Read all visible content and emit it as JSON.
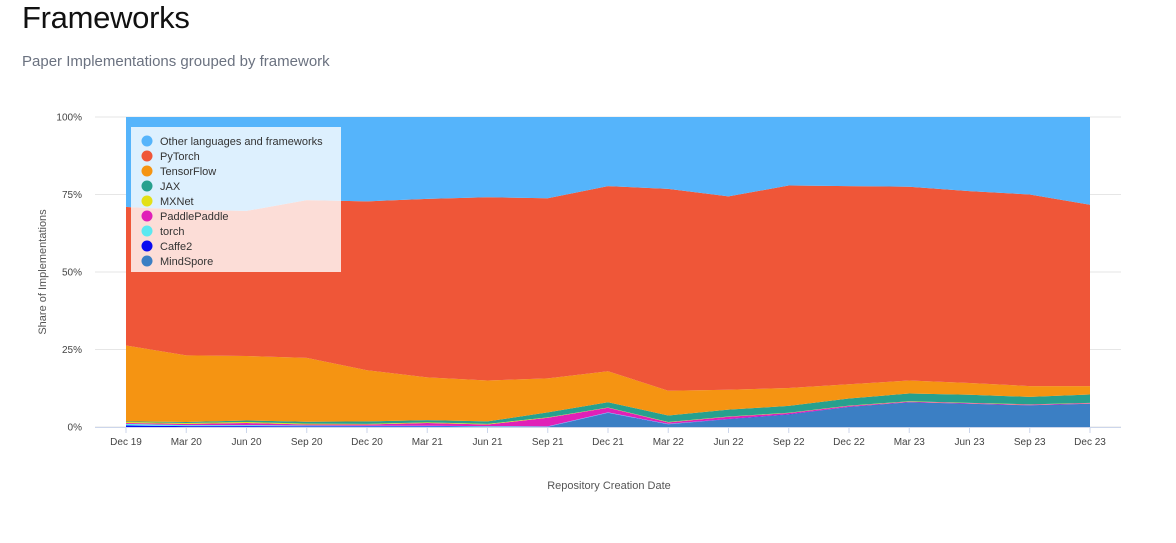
{
  "page": {
    "title": "Frameworks",
    "subtitle": "Paper Implementations grouped by framework"
  },
  "chart_data": {
    "type": "area",
    "stacked": true,
    "normalized": true,
    "title": "",
    "xlabel": "Repository Creation Date",
    "ylabel": "Share of Implementations",
    "ylim": [
      0,
      100
    ],
    "yticks": [
      "0%",
      "25%",
      "50%",
      "75%",
      "100%"
    ],
    "x": [
      "Dec 19",
      "Mar 20",
      "Jun 20",
      "Sep 20",
      "Dec 20",
      "Mar 21",
      "Jun 21",
      "Sep 21",
      "Dec 21",
      "Mar 22",
      "Jun 22",
      "Sep 22",
      "Dec 22",
      "Mar 23",
      "Jun 23",
      "Sep 23",
      "Dec 23"
    ],
    "grid": true,
    "legend_position": "top-left",
    "series": [
      {
        "name": "MindSpore",
        "color": "#3b7fc4",
        "values": [
          0,
          0,
          0,
          0,
          0,
          0,
          0,
          0,
          4.5,
          0.8,
          2.5,
          4,
          6.5,
          8,
          7.5,
          7,
          7.5
        ]
      },
      {
        "name": "Caffe2",
        "color": "#0a0af0",
        "values": [
          0.5,
          0.3,
          0.3,
          0.2,
          0.2,
          0.2,
          0.1,
          0.1,
          0.1,
          0.1,
          0.1,
          0.1,
          0,
          0,
          0,
          0,
          0
        ]
      },
      {
        "name": "torch",
        "color": "#5ce8f0",
        "values": [
          0.5,
          0.3,
          0.3,
          0.3,
          0.2,
          0.2,
          0.2,
          0.1,
          0.1,
          0.1,
          0,
          0,
          0,
          0,
          0,
          0,
          0
        ]
      },
      {
        "name": "PaddlePaddle",
        "color": "#e020b8",
        "values": [
          0.3,
          0.4,
          0.7,
          0.3,
          0.4,
          0.9,
          0.5,
          2.8,
          1.5,
          0.5,
          0.7,
          0.4,
          0.3,
          0.2,
          0.2,
          0.2,
          0.2
        ]
      },
      {
        "name": "MXNet",
        "color": "#e3e018",
        "values": [
          0.3,
          0.3,
          0.3,
          0.3,
          0.2,
          0.2,
          0.2,
          0.1,
          0.1,
          0.1,
          0.1,
          0.1,
          0.1,
          0.1,
          0.1,
          0.1,
          0.1
        ]
      },
      {
        "name": "JAX",
        "color": "#27a08e",
        "values": [
          0.2,
          0.3,
          0.5,
          0.6,
          0.8,
          0.7,
          0.8,
          1.6,
          1.7,
          2.1,
          2.2,
          2.2,
          2.3,
          2.5,
          2.6,
          2.4,
          2.7
        ]
      },
      {
        "name": "TensorFlow",
        "color": "#f59412",
        "values": [
          24.5,
          21.5,
          20.8,
          20.6,
          16.5,
          13.8,
          13.2,
          11,
          10,
          8,
          6.4,
          5.8,
          4.6,
          4.2,
          3.8,
          3.5,
          2.7
        ]
      },
      {
        "name": "PyTorch",
        "color": "#ef5638",
        "values": [
          44.7,
          47,
          46.8,
          50.9,
          54.5,
          57.6,
          59.1,
          58.1,
          59.7,
          65.1,
          62.4,
          65.3,
          63.9,
          62.5,
          61.9,
          61.8,
          58.5
        ]
      },
      {
        "name": "Other languages and frameworks",
        "color": "#55b4fb",
        "values": [
          29,
          29.9,
          30.3,
          26.8,
          27.2,
          26.4,
          25.9,
          26.2,
          22.3,
          23.2,
          25.6,
          22.1,
          22.3,
          22.5,
          23.9,
          25,
          28.3
        ]
      }
    ],
    "legend_order": [
      "Other languages and frameworks",
      "PyTorch",
      "TensorFlow",
      "JAX",
      "MXNet",
      "PaddlePaddle",
      "torch",
      "Caffe2",
      "MindSpore"
    ]
  }
}
